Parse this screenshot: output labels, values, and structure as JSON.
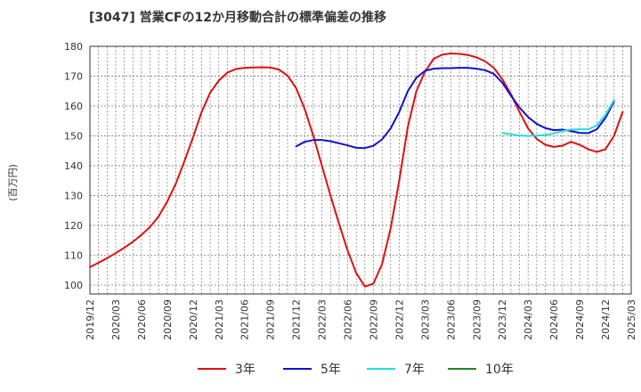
{
  "chart_data": {
    "type": "line",
    "title": "[3047]  営業CFの12か月移動合計の標準偏差の推移",
    "ylabel": "(百万円)",
    "xlabel": "",
    "ylim": [
      97,
      180
    ],
    "yticks": [
      100,
      110,
      120,
      130,
      140,
      150,
      160,
      170,
      180
    ],
    "xticks": [
      "2019/12",
      "2020/03",
      "2020/06",
      "2020/09",
      "2020/12",
      "2021/03",
      "2021/06",
      "2021/09",
      "2021/12",
      "2022/03",
      "2022/06",
      "2022/09",
      "2022/12",
      "2023/03",
      "2023/06",
      "2023/09",
      "2023/12",
      "2024/03",
      "2024/06",
      "2024/09",
      "2024/12",
      "2025/03"
    ],
    "grid": true,
    "legend_position": "bottom",
    "series": [
      {
        "name": "3年",
        "color": "#dd1111",
        "points": [
          [
            "2019/12",
            106.0
          ],
          [
            "2020/01",
            107.5
          ],
          [
            "2020/02",
            109.0
          ],
          [
            "2020/03",
            110.7
          ],
          [
            "2020/04",
            112.5
          ],
          [
            "2020/05",
            114.5
          ],
          [
            "2020/06",
            116.8
          ],
          [
            "2020/07",
            119.5
          ],
          [
            "2020/08",
            123.0
          ],
          [
            "2020/09",
            128.0
          ],
          [
            "2020/10",
            134.0
          ],
          [
            "2020/11",
            141.5
          ],
          [
            "2020/12",
            149.5
          ],
          [
            "2021/01",
            158.0
          ],
          [
            "2021/02",
            164.5
          ],
          [
            "2021/03",
            168.5
          ],
          [
            "2021/04",
            171.2
          ],
          [
            "2021/05",
            172.4
          ],
          [
            "2021/06",
            172.8
          ],
          [
            "2021/07",
            172.9
          ],
          [
            "2021/08",
            173.0
          ],
          [
            "2021/09",
            172.9
          ],
          [
            "2021/10",
            172.2
          ],
          [
            "2021/11",
            170.2
          ],
          [
            "2021/12",
            166.0
          ],
          [
            "2022/01",
            159.0
          ],
          [
            "2022/02",
            150.0
          ],
          [
            "2022/03",
            140.0
          ],
          [
            "2022/04",
            130.0
          ],
          [
            "2022/05",
            120.5
          ],
          [
            "2022/06",
            111.5
          ],
          [
            "2022/07",
            104.0
          ],
          [
            "2022/08",
            99.5
          ],
          [
            "2022/09",
            100.5
          ],
          [
            "2022/10",
            107.0
          ],
          [
            "2022/11",
            119.0
          ],
          [
            "2022/12",
            135.0
          ],
          [
            "2023/01",
            153.0
          ],
          [
            "2023/02",
            165.0
          ],
          [
            "2023/03",
            171.5
          ],
          [
            "2023/04",
            175.8
          ],
          [
            "2023/05",
            177.2
          ],
          [
            "2023/06",
            177.6
          ],
          [
            "2023/07",
            177.5
          ],
          [
            "2023/08",
            177.1
          ],
          [
            "2023/09",
            176.3
          ],
          [
            "2023/10",
            175.0
          ],
          [
            "2023/11",
            172.8
          ],
          [
            "2023/12",
            169.0
          ],
          [
            "2024/01",
            164.0
          ],
          [
            "2024/02",
            158.0
          ],
          [
            "2024/03",
            152.5
          ],
          [
            "2024/04",
            149.0
          ],
          [
            "2024/05",
            147.0
          ],
          [
            "2024/06",
            146.3
          ],
          [
            "2024/07",
            146.7
          ],
          [
            "2024/08",
            148.0
          ],
          [
            "2024/09",
            147.0
          ],
          [
            "2024/10",
            145.5
          ],
          [
            "2024/11",
            144.6
          ],
          [
            "2024/12",
            145.5
          ],
          [
            "2025/01",
            150.0
          ],
          [
            "2025/02",
            158.0
          ]
        ]
      },
      {
        "name": "5年",
        "color": "#1111cc",
        "points": [
          [
            "2021/12",
            146.5
          ],
          [
            "2022/01",
            148.0
          ],
          [
            "2022/02",
            148.6
          ],
          [
            "2022/03",
            148.6
          ],
          [
            "2022/04",
            148.2
          ],
          [
            "2022/05",
            147.5
          ],
          [
            "2022/06",
            146.8
          ],
          [
            "2022/07",
            146.0
          ],
          [
            "2022/08",
            145.9
          ],
          [
            "2022/09",
            146.7
          ],
          [
            "2022/10",
            148.8
          ],
          [
            "2022/11",
            152.5
          ],
          [
            "2022/12",
            158.0
          ],
          [
            "2023/01",
            165.0
          ],
          [
            "2023/02",
            169.5
          ],
          [
            "2023/03",
            171.8
          ],
          [
            "2023/04",
            172.5
          ],
          [
            "2023/05",
            172.7
          ],
          [
            "2023/06",
            172.7
          ],
          [
            "2023/07",
            172.8
          ],
          [
            "2023/08",
            172.8
          ],
          [
            "2023/09",
            172.5
          ],
          [
            "2023/10",
            172.0
          ],
          [
            "2023/11",
            170.8
          ],
          [
            "2023/12",
            167.8
          ],
          [
            "2024/01",
            163.5
          ],
          [
            "2024/02",
            159.5
          ],
          [
            "2024/03",
            156.3
          ],
          [
            "2024/04",
            154.0
          ],
          [
            "2024/05",
            152.6
          ],
          [
            "2024/06",
            151.9
          ],
          [
            "2024/07",
            152.1
          ],
          [
            "2024/08",
            151.6
          ],
          [
            "2024/09",
            151.0
          ],
          [
            "2024/10",
            150.9
          ],
          [
            "2024/11",
            152.2
          ],
          [
            "2024/12",
            156.0
          ],
          [
            "2025/01",
            161.5
          ]
        ]
      },
      {
        "name": "7年",
        "color": "#22dddd",
        "points": [
          [
            "2023/12",
            151.0
          ],
          [
            "2024/01",
            150.5
          ],
          [
            "2024/02",
            150.1
          ],
          [
            "2024/03",
            150.0
          ],
          [
            "2024/04",
            150.1
          ],
          [
            "2024/05",
            150.3
          ],
          [
            "2024/06",
            150.8
          ],
          [
            "2024/07",
            151.6
          ],
          [
            "2024/08",
            152.1
          ],
          [
            "2024/09",
            152.2
          ],
          [
            "2024/10",
            152.2
          ],
          [
            "2024/11",
            153.5
          ],
          [
            "2024/12",
            157.0
          ],
          [
            "2025/01",
            162.0
          ]
        ]
      },
      {
        "name": "10年",
        "color": "#228822",
        "points": []
      }
    ]
  }
}
